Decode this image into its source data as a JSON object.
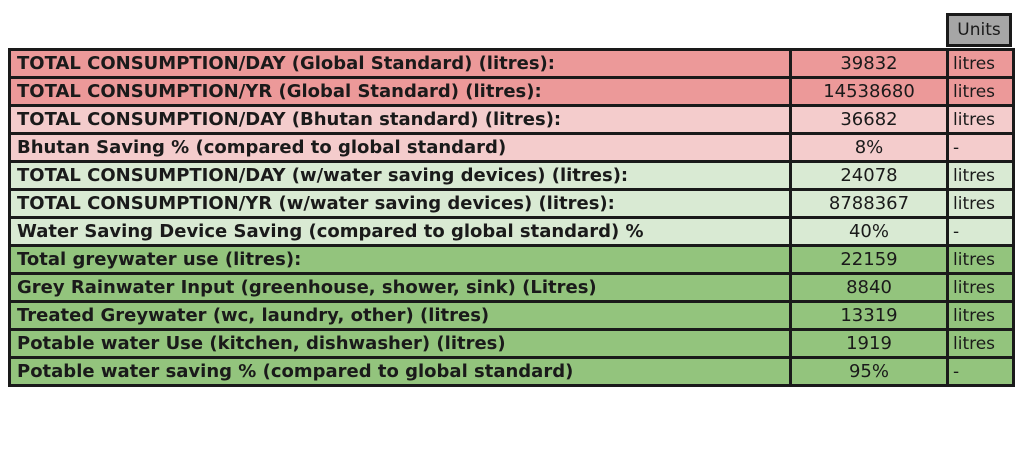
{
  "header": {
    "units_label": "Units"
  },
  "colors": {
    "dark_red_row": "#ec9999",
    "light_red_row": "#f4cccc",
    "light_green_row": "#d9ead3",
    "green_row": "#93c47d",
    "header_gray": "#a6a6a6"
  },
  "rows": [
    {
      "label": "TOTAL CONSUMPTION/DAY (Global Standard) (litres):",
      "value": "39832",
      "unit": "litres"
    },
    {
      "label": "TOTAL CONSUMPTION/YR (Global Standard) (litres):",
      "value": "14538680",
      "unit": "litres"
    },
    {
      "label": "TOTAL CONSUMPTION/DAY (Bhutan standard) (litres):",
      "value": "36682",
      "unit": "litres"
    },
    {
      "label": "Bhutan Saving % (compared to global standard)",
      "value": "8%",
      "unit": "-"
    },
    {
      "label": "TOTAL CONSUMPTION/DAY (w/water saving devices) (litres):",
      "value": "24078",
      "unit": "litres"
    },
    {
      "label": "TOTAL CONSUMPTION/YR (w/water saving devices) (litres):",
      "value": "8788367",
      "unit": "litres"
    },
    {
      "label": "Water Saving Device Saving (compared to global standard) %",
      "value": "40%",
      "unit": "-"
    },
    {
      "label": "Total greywater use (litres):",
      "value": "22159",
      "unit": "litres"
    },
    {
      "label": "Grey Rainwater Input (greenhouse, shower, sink) (Litres)",
      "value": "8840",
      "unit": "litres"
    },
    {
      "label": "Treated Greywater (wc, laundry, other) (litres)",
      "value": "13319",
      "unit": "litres"
    },
    {
      "label": "Potable water Use (kitchen, dishwasher) (litres)",
      "value": "1919",
      "unit": "litres"
    },
    {
      "label": "Potable water saving % (compared to global standard)",
      "value": "95%",
      "unit": "-"
    }
  ]
}
